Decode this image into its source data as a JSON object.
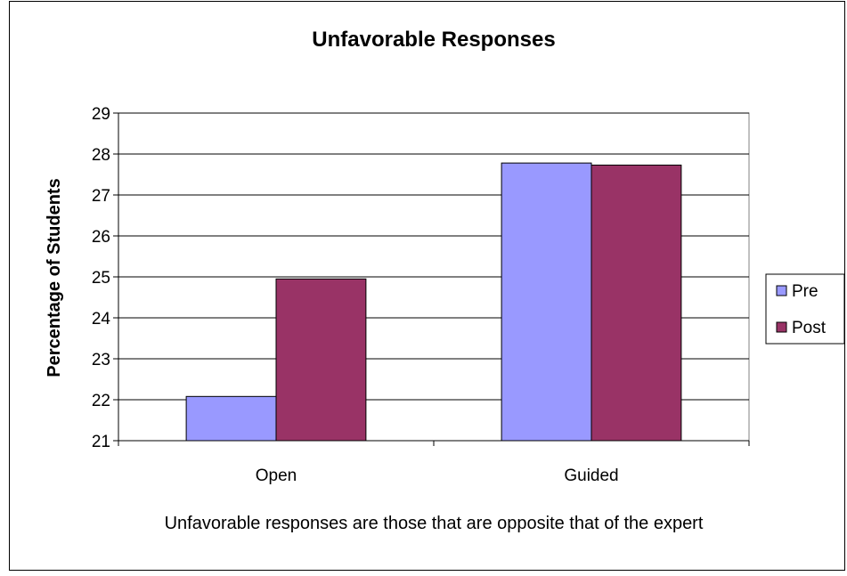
{
  "chart_data": {
    "type": "bar",
    "title": "Unfavorable Responses",
    "ylabel": "Percentage of Students",
    "xlabel": "",
    "categories": [
      "Open",
      "Guided"
    ],
    "series": [
      {
        "name": "Pre",
        "values": [
          22.08,
          27.78
        ],
        "color": "#9999ff"
      },
      {
        "name": "Post",
        "values": [
          24.95,
          27.73
        ],
        "color": "#993366"
      }
    ],
    "ylim": [
      21,
      29
    ],
    "yticks": [
      21,
      22,
      23,
      24,
      25,
      26,
      27,
      28,
      29
    ],
    "grid": true,
    "legend_position": "right",
    "plot_background": "#ffffff",
    "caption": "Unfavorable responses are those that are opposite that of the expert"
  }
}
